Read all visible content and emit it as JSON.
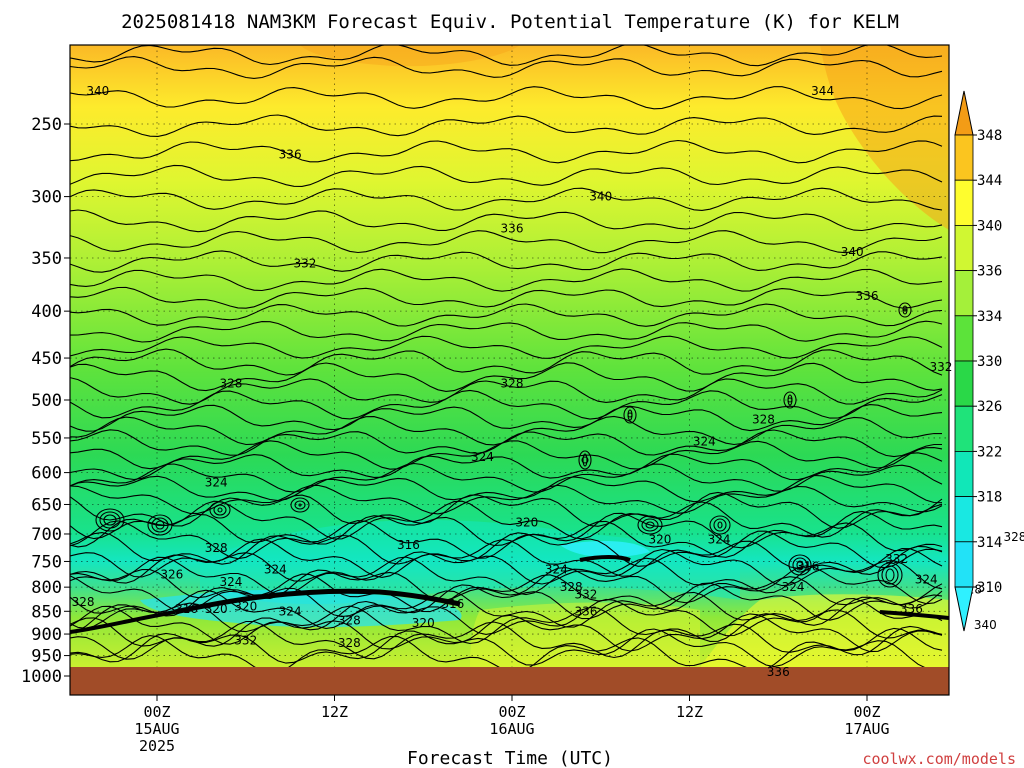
{
  "chart_data": {
    "type": "heatmap",
    "title": "2025081418 NAM3KM Forecast Equiv. Potential Temperature (K) for KELM",
    "xlabel": "Forecast Time (UTC)",
    "ylabel": "",
    "y_scale": "log",
    "y_axis": "pressure (hPa), decreasing upward",
    "y_ticks": [
      "250",
      "300",
      "350",
      "400",
      "450",
      "500",
      "550",
      "600",
      "650",
      "700",
      "750",
      "800",
      "850",
      "900",
      "950",
      "1000"
    ],
    "x_ticks": [
      {
        "line1": "00Z",
        "line2": "15AUG",
        "line3": "2025"
      },
      {
        "line1": "12Z",
        "line2": "",
        "line3": ""
      },
      {
        "line1": "00Z",
        "line2": "16AUG",
        "line3": ""
      },
      {
        "line1": "12Z",
        "line2": "",
        "line3": ""
      },
      {
        "line1": "00Z",
        "line2": "17AUG",
        "line3": ""
      }
    ],
    "colorbar": {
      "ticks": [
        "348",
        "344",
        "340",
        "336",
        "334",
        "330",
        "326",
        "322",
        "318",
        "314",
        "310"
      ],
      "colors": [
        "#f39c16",
        "#fbc51f",
        "#fefd2e",
        "#d0f732",
        "#a4f03a",
        "#5ce33a",
        "#2ad848",
        "#1fe37a",
        "#11e7b8",
        "#19e8e2",
        "#22e2f7",
        "#2ff0ff"
      ]
    },
    "ground_color": "#a14c28",
    "contour_labels": [
      {
        "text": "340",
        "p": 230,
        "h": -4
      },
      {
        "text": "344",
        "p": 230,
        "h": 45
      },
      {
        "text": "336",
        "p": 270,
        "h": 9
      },
      {
        "text": "340",
        "p": 300,
        "h": 30
      },
      {
        "text": "336",
        "p": 325,
        "h": 24
      },
      {
        "text": "340",
        "p": 345,
        "h": 47
      },
      {
        "text": "332",
        "p": 355,
        "h": 10
      },
      {
        "text": "336",
        "p": 385,
        "h": 48
      },
      {
        "text": "332",
        "p": 460,
        "h": 53
      },
      {
        "text": "328",
        "p": 480,
        "h": 5
      },
      {
        "text": "328",
        "p": 480,
        "h": 24
      },
      {
        "text": "328",
        "p": 525,
        "h": 41
      },
      {
        "text": "324",
        "p": 555,
        "h": 37
      },
      {
        "text": "324",
        "p": 577,
        "h": 22
      },
      {
        "text": "324",
        "p": 615,
        "h": 4
      },
      {
        "text": "320",
        "p": 680,
        "h": 25
      },
      {
        "text": "316",
        "p": 720,
        "h": 17
      },
      {
        "text": "320",
        "p": 710,
        "h": 34
      },
      {
        "text": "324",
        "p": 710,
        "h": 38
      },
      {
        "text": "328",
        "p": 705,
        "h": 58
      },
      {
        "text": "328",
        "p": 725,
        "h": 4
      },
      {
        "text": "332",
        "p": 745,
        "h": 50
      },
      {
        "text": "316",
        "p": 760,
        "h": 44
      },
      {
        "text": "324",
        "p": 765,
        "h": 8
      },
      {
        "text": "324",
        "p": 765,
        "h": 27
      },
      {
        "text": "326",
        "p": 775,
        "h": 1
      },
      {
        "text": "324",
        "p": 790,
        "h": 5
      },
      {
        "text": "324",
        "p": 785,
        "h": 52
      },
      {
        "text": "328",
        "p": 800,
        "h": 28
      },
      {
        "text": "324",
        "p": 800,
        "h": 43
      },
      {
        "text": "328",
        "p": 805,
        "h": 55
      },
      {
        "text": "332",
        "p": 815,
        "h": 29
      },
      {
        "text": "328",
        "p": 830,
        "h": -5
      },
      {
        "text": "320",
        "p": 840,
        "h": 6
      },
      {
        "text": "316",
        "p": 845,
        "h": 2
      },
      {
        "text": "320",
        "p": 845,
        "h": 4
      },
      {
        "text": "324",
        "p": 850,
        "h": 9
      },
      {
        "text": "316",
        "p": 835,
        "h": 20
      },
      {
        "text": "336",
        "p": 850,
        "h": 29
      },
      {
        "text": "336",
        "p": 845,
        "h": 51
      },
      {
        "text": "328",
        "p": 870,
        "h": 13
      },
      {
        "text": "320",
        "p": 875,
        "h": 18
      },
      {
        "text": "340",
        "p": 880,
        "h": 56
      },
      {
        "text": "332",
        "p": 915,
        "h": 6
      },
      {
        "text": "328",
        "p": 920,
        "h": 13
      },
      {
        "text": "336",
        "p": 990,
        "h": 42
      }
    ]
  },
  "credit": "coolwx.com/models"
}
